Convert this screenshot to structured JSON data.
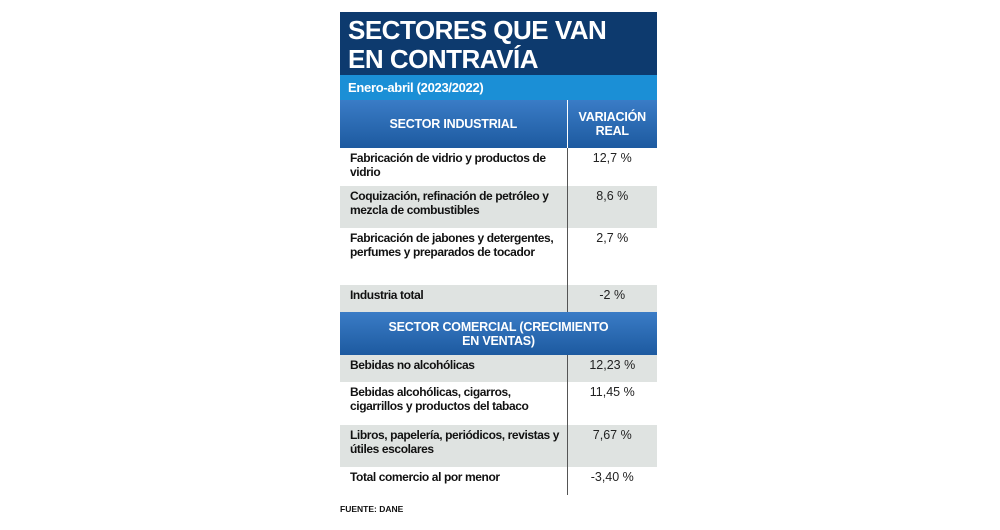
{
  "header": {
    "title_lines": [
      "SECTORES QUE VAN",
      "EN CONTRAVÍA"
    ],
    "subtitle": "Enero-abril (2023/2022)"
  },
  "table": {
    "columns": [
      "SECTOR INDUSTRIAL",
      "VARIACIÓN REAL"
    ],
    "industrial_rows": [
      [
        "Fabricación de vidrio y productos de vidrio",
        "12,7 %"
      ],
      [
        "Coquización, refinación de petróleo y mezcla de combustibles",
        "8,6 %"
      ],
      [
        "Fabricación de jabones y detergentes, perfumes y preparados de tocador",
        "2,7 %"
      ],
      [
        "Industria total",
        "-2 %"
      ]
    ],
    "commercial_header": "SECTOR COMERCIAL (CRECIMIENTO EN VENTAS)",
    "commercial_rows": [
      [
        "Bebidas no alcohólicas",
        "12,23 %"
      ],
      [
        "Bebidas alcohólicas, cigarros, cigarrillos y productos del tabaco",
        "11,45 %"
      ],
      [
        "Libros, papelería, periódicos, revistas y útiles escolares",
        "7,67 %"
      ],
      [
        "Total comercio al por menor",
        "-3,40 %"
      ]
    ]
  },
  "footer": "FUENTE: DANE"
}
